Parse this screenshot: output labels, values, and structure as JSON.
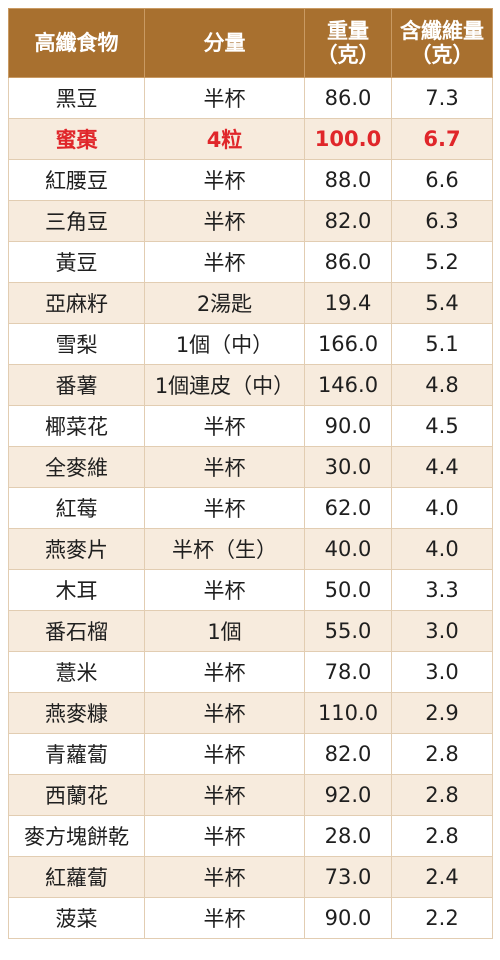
{
  "chart_data": {
    "type": "table",
    "columns": [
      {
        "line1": "高纖食物",
        "line2": ""
      },
      {
        "line1": "分量",
        "line2": ""
      },
      {
        "line1": "重量",
        "line2": "（克）"
      },
      {
        "line1": "含纖維量",
        "line2": "（克）"
      }
    ],
    "highlight_color": "#e0262a",
    "header_color": "#a8702f",
    "stripe_color": "#f7ebdd",
    "rows": [
      {
        "food": "黑豆",
        "portion": "半杯",
        "weight": "86.0",
        "fiber": "7.3",
        "highlight": false
      },
      {
        "food": "蜜棗",
        "portion": "4粒",
        "weight": "100.0",
        "fiber": "6.7",
        "highlight": true
      },
      {
        "food": "紅腰豆",
        "portion": "半杯",
        "weight": "88.0",
        "fiber": "6.6",
        "highlight": false
      },
      {
        "food": "三角豆",
        "portion": "半杯",
        "weight": "82.0",
        "fiber": "6.3",
        "highlight": false
      },
      {
        "food": "黃豆",
        "portion": "半杯",
        "weight": "86.0",
        "fiber": "5.2",
        "highlight": false
      },
      {
        "food": "亞麻籽",
        "portion": "2湯匙",
        "weight": "19.4",
        "fiber": "5.4",
        "highlight": false
      },
      {
        "food": "雪梨",
        "portion": "1個（中）",
        "weight": "166.0",
        "fiber": "5.1",
        "highlight": false
      },
      {
        "food": "番薯",
        "portion": "1個連皮（中）",
        "weight": "146.0",
        "fiber": "4.8",
        "highlight": false
      },
      {
        "food": "椰菜花",
        "portion": "半杯",
        "weight": "90.0",
        "fiber": "4.5",
        "highlight": false
      },
      {
        "food": "全麥維",
        "portion": "半杯",
        "weight": "30.0",
        "fiber": "4.4",
        "highlight": false
      },
      {
        "food": "紅莓",
        "portion": "半杯",
        "weight": "62.0",
        "fiber": "4.0",
        "highlight": false
      },
      {
        "food": "燕麥片",
        "portion": "半杯（生）",
        "weight": "40.0",
        "fiber": "4.0",
        "highlight": false
      },
      {
        "food": "木耳",
        "portion": "半杯",
        "weight": "50.0",
        "fiber": "3.3",
        "highlight": false
      },
      {
        "food": "番石榴",
        "portion": "1個",
        "weight": "55.0",
        "fiber": "3.0",
        "highlight": false
      },
      {
        "food": "薏米",
        "portion": "半杯",
        "weight": "78.0",
        "fiber": "3.0",
        "highlight": false
      },
      {
        "food": "燕麥糠",
        "portion": "半杯",
        "weight": "110.0",
        "fiber": "2.9",
        "highlight": false
      },
      {
        "food": "青蘿蔔",
        "portion": "半杯",
        "weight": "82.0",
        "fiber": "2.8",
        "highlight": false
      },
      {
        "food": "西蘭花",
        "portion": "半杯",
        "weight": "92.0",
        "fiber": "2.8",
        "highlight": false
      },
      {
        "food": "麥方塊餅乾",
        "portion": "半杯",
        "weight": "28.0",
        "fiber": "2.8",
        "highlight": false
      },
      {
        "food": "紅蘿蔔",
        "portion": "半杯",
        "weight": "73.0",
        "fiber": "2.4",
        "highlight": false
      },
      {
        "food": "菠菜",
        "portion": "半杯",
        "weight": "90.0",
        "fiber": "2.2",
        "highlight": false
      }
    ]
  }
}
